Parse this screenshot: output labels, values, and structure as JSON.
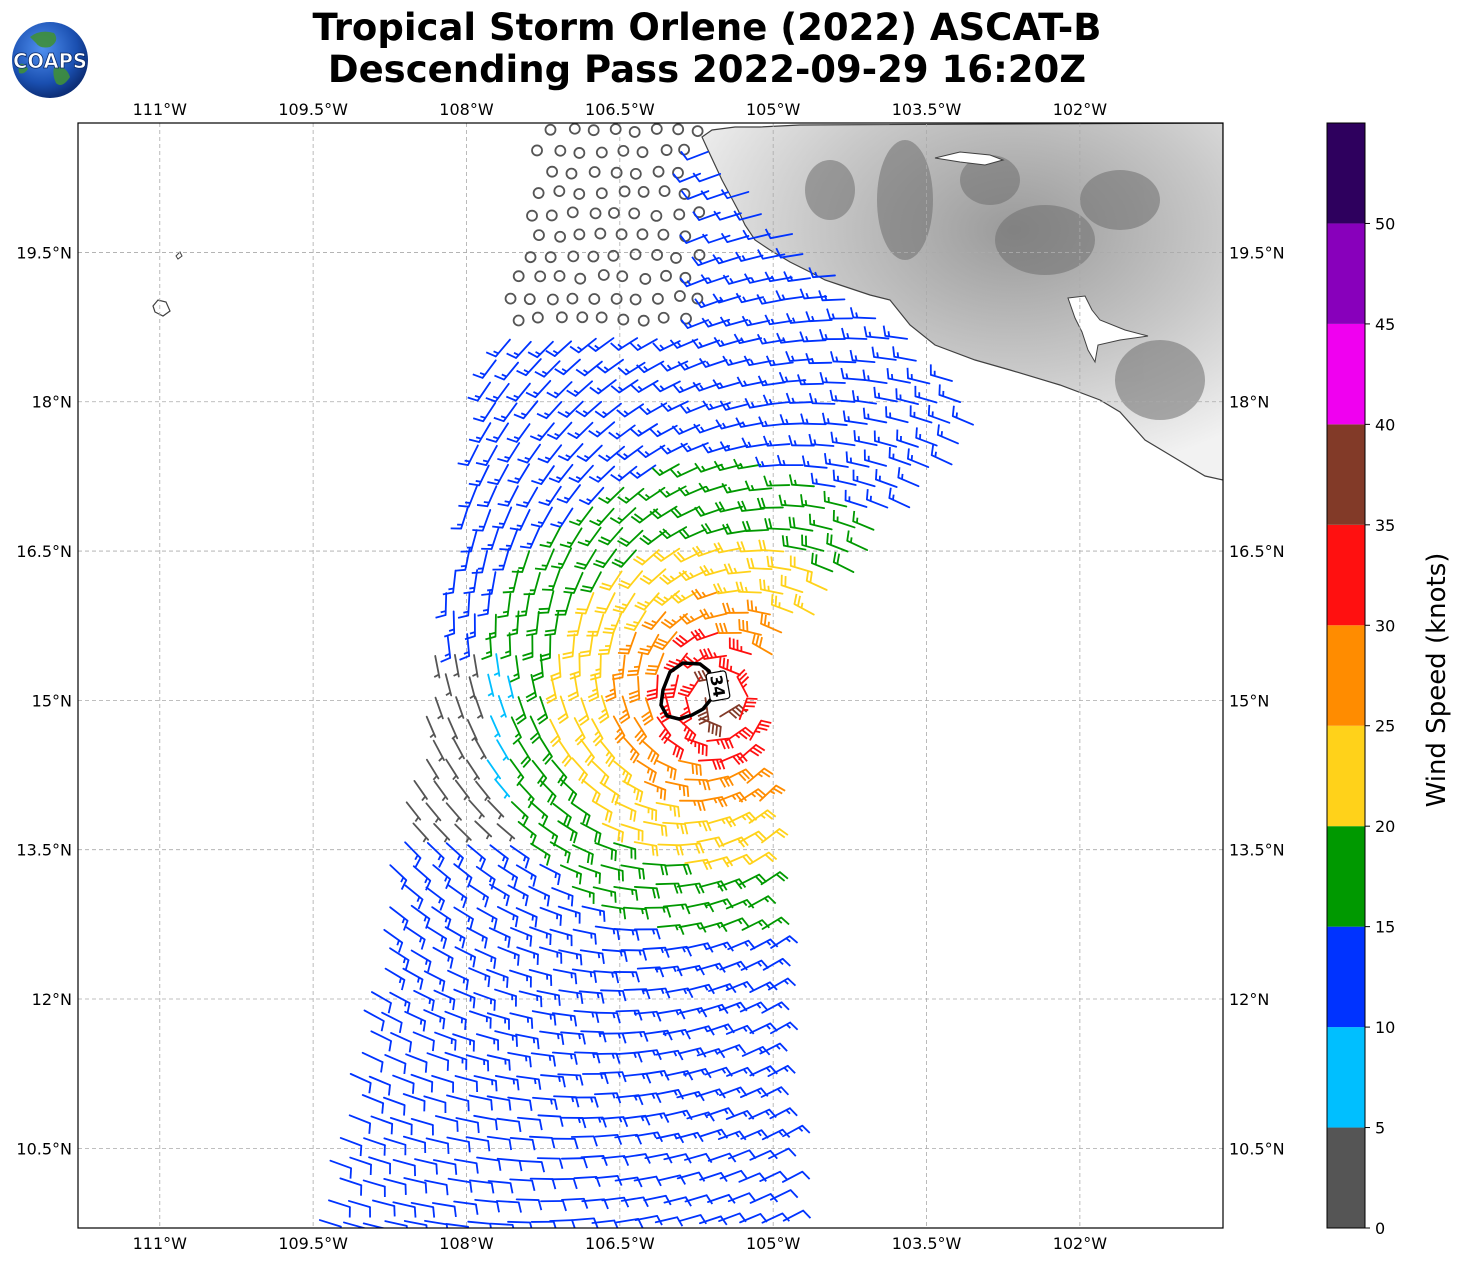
{
  "title": {
    "line1": "Tropical Storm Orlene (2022) ASCAT-B",
    "line2": "Descending Pass 2022-09-29 16:20Z"
  },
  "logo": {
    "text": "COAPS"
  },
  "map": {
    "lon_range": [
      -111.8,
      -100.6
    ],
    "lat_range": [
      9.7,
      20.8
    ],
    "lon_ticks": [
      {
        "value": -111.0,
        "label": "111°W"
      },
      {
        "value": -109.5,
        "label": "109.5°W"
      },
      {
        "value": -108.0,
        "label": "108°W"
      },
      {
        "value": -106.5,
        "label": "106.5°W"
      },
      {
        "value": -105.0,
        "label": "105°W"
      },
      {
        "value": -103.5,
        "label": "103.5°W"
      },
      {
        "value": -102.0,
        "label": "102°W"
      }
    ],
    "lat_ticks": [
      {
        "value": 19.5,
        "label": "19.5°N"
      },
      {
        "value": 18.0,
        "label": "18°N"
      },
      {
        "value": 16.5,
        "label": "16.5°N"
      },
      {
        "value": 15.0,
        "label": "15°N"
      },
      {
        "value": 13.5,
        "label": "13.5°N"
      },
      {
        "value": 12.0,
        "label": "12°N"
      },
      {
        "value": 10.5,
        "label": "10.5°N"
      }
    ],
    "storm_center": {
      "lon": -105.55,
      "lat": 15.0
    },
    "wind34_contour_label": "34",
    "grid": true
  },
  "colorbar": {
    "label": "Wind Speed (knots)",
    "ticks": [
      "0",
      "5",
      "10",
      "15",
      "20",
      "25",
      "30",
      "35",
      "40",
      "45",
      "50"
    ],
    "bins": [
      {
        "min": 0,
        "max": 5,
        "color": "#555555"
      },
      {
        "min": 5,
        "max": 10,
        "color": "#00bfff"
      },
      {
        "min": 10,
        "max": 15,
        "color": "#0033ff"
      },
      {
        "min": 15,
        "max": 20,
        "color": "#009900"
      },
      {
        "min": 20,
        "max": 25,
        "color": "#ffd21a"
      },
      {
        "min": 25,
        "max": 30,
        "color": "#ff8c00"
      },
      {
        "min": 30,
        "max": 35,
        "color": "#ff1010"
      },
      {
        "min": 35,
        "max": 40,
        "color": "#823a28"
      },
      {
        "min": 40,
        "max": 45,
        "color": "#f000f0"
      },
      {
        "min": 45,
        "max": 50,
        "color": "#8800bb"
      },
      {
        "min": 50,
        "max": 55,
        "color": "#2e005e"
      }
    ]
  }
}
